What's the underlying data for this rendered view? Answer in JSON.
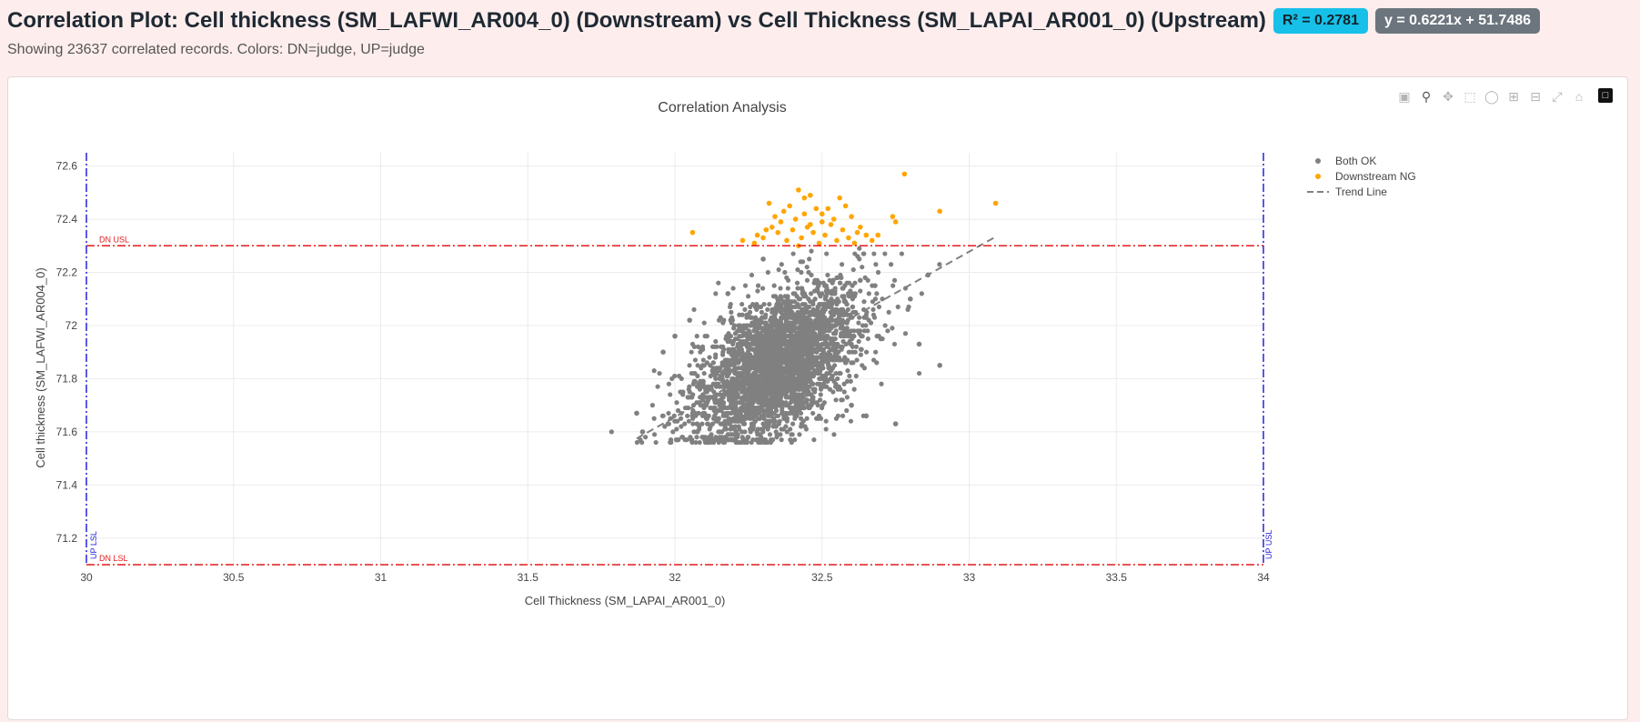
{
  "header": {
    "title": "Correlation Plot: Cell thickness (SM_LAFWI_AR004_0) (Downstream) vs Cell Thickness (SM_LAPAI_AR001_0) (Upstream)",
    "r2_badge": "R² = 0.2781",
    "equation_badge": "y = 0.6221x + 51.7486",
    "subtitle": "Showing 23637 correlated records. Colors: DN=judge, UP=judge"
  },
  "modebar": {
    "icons": [
      "camera-icon",
      "zoom-icon",
      "pan-icon",
      "box-select-icon",
      "lasso-icon",
      "zoom-in-icon",
      "zoom-out-icon",
      "autoscale-icon",
      "reset-axes-icon",
      "plotly-logo-icon"
    ]
  },
  "chart_data": {
    "type": "scatter",
    "title": "Correlation Analysis",
    "xlabel": "Cell Thickness (SM_LAPAI_AR001_0)",
    "ylabel": "Cell thickness (SM_LAFWI_AR004_0)",
    "xlim": [
      30,
      34
    ],
    "ylim": [
      71.1,
      72.65
    ],
    "x_ticks": [
      30,
      30.5,
      31,
      31.5,
      32,
      32.5,
      33,
      33.5,
      34
    ],
    "x_tick_labels": [
      "30",
      "30.5",
      "31",
      "31.5",
      "32",
      "32.5",
      "33",
      "33.5",
      "34"
    ],
    "y_ticks": [
      71.2,
      71.4,
      71.6,
      71.8,
      72,
      72.2,
      72.4,
      72.6
    ],
    "y_tick_labels": [
      "71.2",
      "71.4",
      "71.6",
      "71.8",
      "72",
      "72.2",
      "72.4",
      "72.6"
    ],
    "grid": true,
    "legend_position": "top-right",
    "colors": {
      "both_ok": "#808080",
      "downstream_ng": "#ffa500",
      "trend": "#808080",
      "dn_limit": "#e31a1c",
      "up_limit": "#2222dd"
    },
    "legend": [
      {
        "name": "Both OK",
        "kind": "marker",
        "color": "#808080"
      },
      {
        "name": "Downstream NG",
        "kind": "marker",
        "color": "#ffa500"
      },
      {
        "name": "Trend Line",
        "kind": "dash",
        "color": "#808080"
      }
    ],
    "limits": {
      "dn_usl": {
        "label": "DN USL",
        "value": 72.3
      },
      "dn_lsl": {
        "label": "DN LSL",
        "value": 71.1
      },
      "up_lsl": {
        "label": "UP LSL",
        "value": 30
      },
      "up_usl": {
        "label": "UP USL",
        "value": 34
      }
    },
    "trend_line": {
      "slope": 0.6221,
      "intercept": 51.7486,
      "x_range": [
        31.87,
        33.09
      ]
    },
    "both_ok_cluster": {
      "count": 23637,
      "x_mean": 32.35,
      "x_std": 0.14,
      "y_mean": 71.86,
      "y_std": 0.15,
      "correlation": 0.53,
      "y_min": 71.56,
      "y_max": 72.29
    },
    "both_ok_outliers": [
      {
        "x": 31.87,
        "y": 71.67
      },
      {
        "x": 31.89,
        "y": 71.6
      },
      {
        "x": 31.96,
        "y": 71.9
      },
      {
        "x": 32.0,
        "y": 71.96
      },
      {
        "x": 32.05,
        "y": 72.02
      },
      {
        "x": 32.75,
        "y": 71.63
      },
      {
        "x": 32.9,
        "y": 71.85
      },
      {
        "x": 32.83,
        "y": 71.93
      },
      {
        "x": 32.86,
        "y": 72.19
      },
      {
        "x": 32.8,
        "y": 72.1
      },
      {
        "x": 32.7,
        "y": 71.95
      },
      {
        "x": 32.65,
        "y": 71.66
      },
      {
        "x": 32.3,
        "y": 72.25
      },
      {
        "x": 32.18,
        "y": 72.12
      },
      {
        "x": 32.6,
        "y": 71.7
      }
    ],
    "downstream_ng": [
      {
        "x": 32.06,
        "y": 72.35
      },
      {
        "x": 32.23,
        "y": 72.32
      },
      {
        "x": 32.32,
        "y": 72.46
      },
      {
        "x": 32.37,
        "y": 72.43
      },
      {
        "x": 32.42,
        "y": 72.51
      },
      {
        "x": 32.44,
        "y": 72.48
      },
      {
        "x": 32.46,
        "y": 72.49
      },
      {
        "x": 32.48,
        "y": 72.44
      },
      {
        "x": 32.5,
        "y": 72.39
      },
      {
        "x": 32.52,
        "y": 72.44
      },
      {
        "x": 32.56,
        "y": 72.48
      },
      {
        "x": 32.6,
        "y": 72.41
      },
      {
        "x": 32.62,
        "y": 72.35
      },
      {
        "x": 32.65,
        "y": 72.34
      },
      {
        "x": 32.74,
        "y": 72.41
      },
      {
        "x": 32.75,
        "y": 72.39
      },
      {
        "x": 32.78,
        "y": 72.57
      },
      {
        "x": 32.9,
        "y": 72.43
      },
      {
        "x": 33.09,
        "y": 72.46
      },
      {
        "x": 32.3,
        "y": 72.33
      },
      {
        "x": 32.33,
        "y": 72.37
      },
      {
        "x": 32.35,
        "y": 72.35
      },
      {
        "x": 32.38,
        "y": 72.32
      },
      {
        "x": 32.4,
        "y": 72.36
      },
      {
        "x": 32.41,
        "y": 72.4
      },
      {
        "x": 32.43,
        "y": 72.33
      },
      {
        "x": 32.45,
        "y": 72.37
      },
      {
        "x": 32.47,
        "y": 72.35
      },
      {
        "x": 32.49,
        "y": 72.31
      },
      {
        "x": 32.51,
        "y": 72.34
      },
      {
        "x": 32.53,
        "y": 72.38
      },
      {
        "x": 32.55,
        "y": 72.32
      },
      {
        "x": 32.57,
        "y": 72.36
      },
      {
        "x": 32.59,
        "y": 72.33
      },
      {
        "x": 32.61,
        "y": 72.31
      },
      {
        "x": 32.63,
        "y": 72.37
      },
      {
        "x": 32.67,
        "y": 72.32
      },
      {
        "x": 32.69,
        "y": 72.34
      },
      {
        "x": 32.34,
        "y": 72.41
      },
      {
        "x": 32.39,
        "y": 72.45
      },
      {
        "x": 32.44,
        "y": 72.42
      },
      {
        "x": 32.46,
        "y": 72.38
      },
      {
        "x": 32.5,
        "y": 72.42
      },
      {
        "x": 32.54,
        "y": 72.4
      },
      {
        "x": 32.58,
        "y": 72.45
      },
      {
        "x": 32.36,
        "y": 72.39
      },
      {
        "x": 32.31,
        "y": 72.36
      },
      {
        "x": 32.28,
        "y": 72.34
      },
      {
        "x": 32.27,
        "y": 72.31
      },
      {
        "x": 32.42,
        "y": 72.3
      }
    ]
  }
}
